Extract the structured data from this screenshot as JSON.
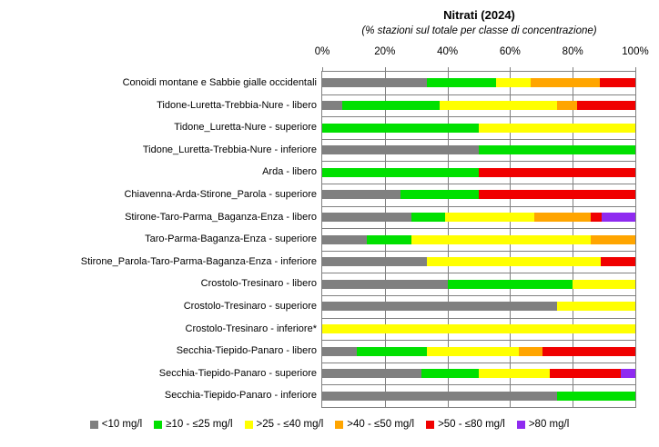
{
  "title": "Nitrati (2024)",
  "subtitle": "(% stazioni sul totale per classe di concentrazione)",
  "axis": {
    "ticks": [
      "0%",
      "20%",
      "40%",
      "60%",
      "80%",
      "100%"
    ]
  },
  "legend": [
    {
      "label": "<10 mg/l",
      "color": "#808080"
    },
    {
      "label": "≥10 - ≤25 mg/l",
      "color": "#00E000"
    },
    {
      "label": ">25 - ≤40 mg/l",
      "color": "#FFFF00"
    },
    {
      "label": ">40 - ≤50 mg/l",
      "color": "#FFA500"
    },
    {
      "label": ">50 - ≤80 mg/l",
      "color": "#F00000"
    },
    {
      "label": ">80 mg/l",
      "color": "#8F2BF0"
    }
  ],
  "chart_data": {
    "type": "bar",
    "stacked": true,
    "orientation": "horizontal",
    "title": "Nitrati (2024)",
    "subtitle": "(% stazioni sul totale per classe di concentrazione)",
    "xlabel": "",
    "ylabel": "",
    "xlim": [
      0,
      100
    ],
    "x_ticks_percent": [
      0,
      20,
      40,
      60,
      80,
      100
    ],
    "grid": true,
    "legend_position": "bottom",
    "series_classes": [
      "<10 mg/l",
      "≥10 - ≤25 mg/l",
      ">25 - ≤40 mg/l",
      ">40 - ≤50 mg/l",
      ">50 - ≤80 mg/l",
      ">80 mg/l"
    ],
    "series_colors": [
      "#808080",
      "#00E000",
      "#FFFF00",
      "#FFA500",
      "#F00000",
      "#8F2BF0"
    ],
    "rows": [
      {
        "category": "Conoidi montane e Sabbie gialle occidentali",
        "values": [
          33.3,
          22.2,
          11.1,
          22.2,
          11.1,
          0
        ]
      },
      {
        "category": "Tidone-Luretta-Trebbia-Nure - libero",
        "values": [
          6.3,
          31.2,
          37.5,
          6.3,
          18.7,
          0
        ]
      },
      {
        "category": "Tidone_Luretta-Nure - superiore",
        "values": [
          0,
          50,
          50,
          0,
          0,
          0
        ]
      },
      {
        "category": "Tidone_Luretta-Trebbia-Nure - inferiore",
        "values": [
          50,
          50,
          0,
          0,
          0,
          0
        ]
      },
      {
        "category": "Arda - libero",
        "values": [
          0,
          50,
          0,
          0,
          50,
          0
        ]
      },
      {
        "category": "Chiavenna-Arda-Stirone_Parola - superiore",
        "values": [
          25,
          25,
          0,
          0,
          50,
          0
        ]
      },
      {
        "category": "Stirone-Taro-Parma_Baganza-Enza - libero",
        "values": [
          28.6,
          10.7,
          28.6,
          17.9,
          3.6,
          10.7
        ]
      },
      {
        "category": "Taro-Parma-Baganza-Enza - superiore",
        "values": [
          14.3,
          14.3,
          57.1,
          14.3,
          0,
          0
        ]
      },
      {
        "category": "Stirone_Parola-Taro-Parma-Baganza-Enza - inferiore",
        "values": [
          33.3,
          0,
          55.6,
          0,
          11.1,
          0
        ]
      },
      {
        "category": "Crostolo-Tresinaro - libero",
        "values": [
          40,
          40,
          20,
          0,
          0,
          0
        ]
      },
      {
        "category": "Crostolo-Tresinaro - superiore",
        "values": [
          75,
          0,
          25,
          0,
          0,
          0
        ]
      },
      {
        "category": "Crostolo-Tresinaro - inferiore*",
        "values": [
          0,
          0,
          100,
          0,
          0,
          0
        ]
      },
      {
        "category": "Secchia-Tiepido-Panaro - libero",
        "values": [
          11.1,
          22.2,
          29.6,
          7.4,
          29.6,
          0
        ]
      },
      {
        "category": "Secchia-Tiepido-Panaro - superiore",
        "values": [
          31.8,
          18.2,
          22.7,
          0,
          22.7,
          4.6
        ]
      },
      {
        "category": "Secchia-Tiepido-Panaro - inferiore",
        "values": [
          75,
          25,
          0,
          0,
          0,
          0
        ]
      }
    ]
  }
}
